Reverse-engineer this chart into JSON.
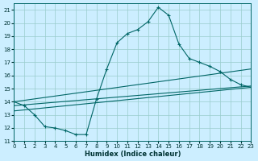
{
  "xlabel": "Humidex (Indice chaleur)",
  "xlim": [
    0,
    23
  ],
  "ylim": [
    11,
    21.5
  ],
  "yticks": [
    11,
    12,
    13,
    14,
    15,
    16,
    17,
    18,
    19,
    20,
    21
  ],
  "xticks": [
    0,
    1,
    2,
    3,
    4,
    5,
    6,
    7,
    8,
    9,
    10,
    11,
    12,
    13,
    14,
    15,
    16,
    17,
    18,
    19,
    20,
    21,
    22,
    23
  ],
  "background_color": "#cceeff",
  "grid_color": "#99cccc",
  "line_color": "#006666",
  "curve_x": [
    0,
    1,
    2,
    3,
    4,
    5,
    6,
    7,
    8,
    9,
    10,
    11,
    12,
    13,
    14,
    15,
    16,
    17,
    18,
    19,
    20,
    21,
    22,
    23
  ],
  "curve_y": [
    14.0,
    13.7,
    13.0,
    12.1,
    12.0,
    11.8,
    11.5,
    11.5,
    14.2,
    16.5,
    18.5,
    19.2,
    19.5,
    20.1,
    21.2,
    20.6,
    18.4,
    17.3,
    17.0,
    16.7,
    16.3,
    15.7,
    15.3,
    15.1
  ],
  "line1_x": [
    0,
    23
  ],
  "line1_y": [
    14.0,
    16.5
  ],
  "line2_x": [
    0,
    23
  ],
  "line2_y": [
    13.7,
    15.2
  ],
  "line3_x": [
    0,
    23
  ],
  "line3_y": [
    13.3,
    15.1
  ]
}
